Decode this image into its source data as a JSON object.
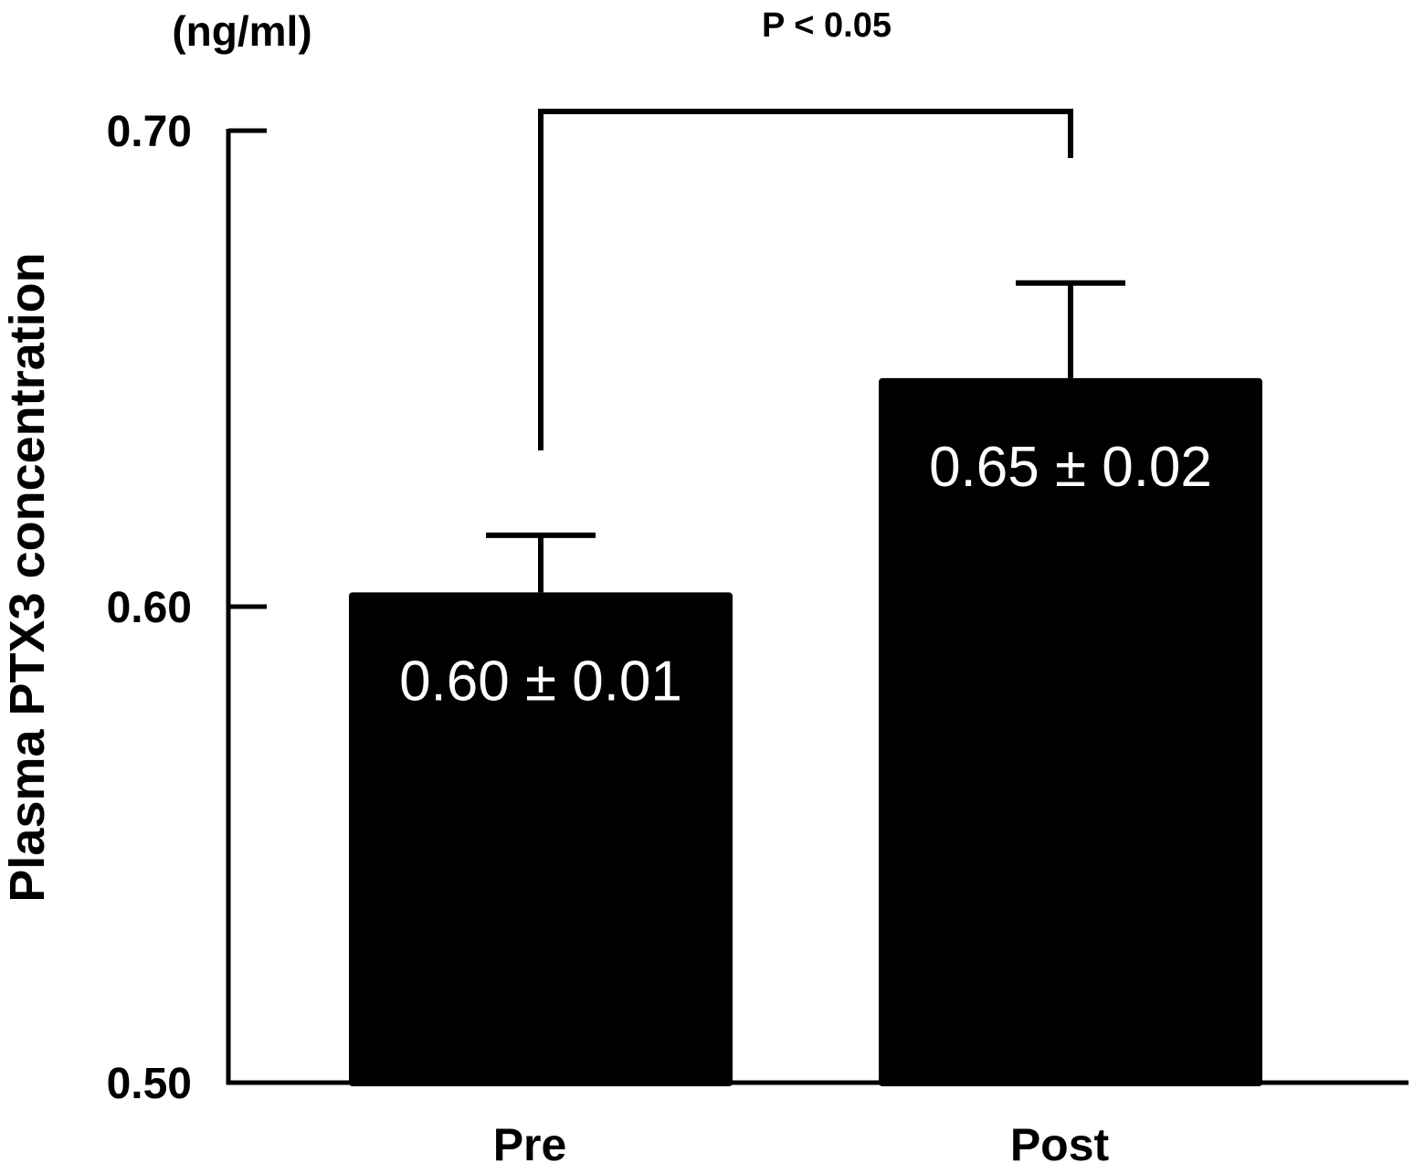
{
  "chart_data": {
    "type": "bar",
    "categories": [
      "Pre",
      "Post"
    ],
    "values": [
      0.603,
      0.648
    ],
    "errors": [
      0.012,
      0.02
    ],
    "value_labels": [
      "0.60 ± 0.01",
      "0.65 ± 0.02"
    ],
    "ylabel": "Plasma PTX3 concentration",
    "unit_label": "(ng/ml)",
    "ylim": [
      0.5,
      0.7
    ],
    "yticks": [
      0.5,
      0.6,
      0.7
    ],
    "ytick_labels": [
      "0.50",
      "0.60",
      "0.70"
    ],
    "significance": {
      "label": "P < 0.05",
      "between": [
        "Pre",
        "Post"
      ]
    },
    "grid": false,
    "legend": "none",
    "colors": {
      "bar": "#000000",
      "bar_label": "#ffffff",
      "axis": "#000000"
    }
  }
}
